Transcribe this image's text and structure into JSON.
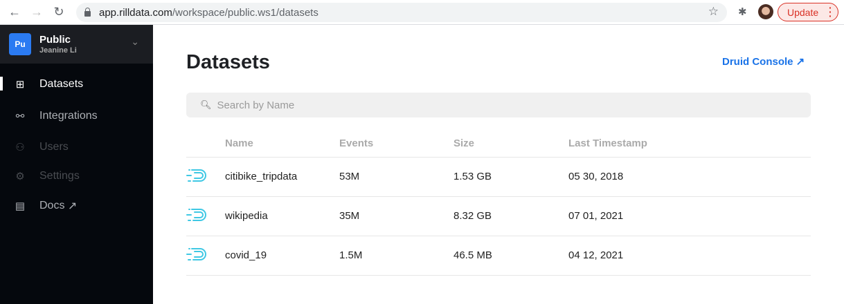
{
  "browser": {
    "url_host": "app.rilldata.com",
    "url_path": "/workspace/public.ws1/datasets",
    "update_label": "Update"
  },
  "workspace": {
    "initials": "Pu",
    "name": "Public",
    "user": "Jeanine Li"
  },
  "sidebar": {
    "items": [
      {
        "label": "Datasets",
        "icon": "datasets-icon"
      },
      {
        "label": "Integrations",
        "icon": "integrations-icon"
      },
      {
        "label": "Users",
        "icon": "users-icon"
      },
      {
        "label": "Settings",
        "icon": "gear-icon"
      },
      {
        "label": "Docs",
        "icon": "document-icon",
        "ext": "↗"
      }
    ]
  },
  "main": {
    "title": "Datasets",
    "druid_console": "Druid Console ↗",
    "search_placeholder": "Search by Name",
    "columns": [
      "Name",
      "Events",
      "Size",
      "Last Timestamp"
    ],
    "rows": [
      {
        "name": "citibike_tripdata",
        "events": "53M",
        "size": "1.53 GB",
        "last": "05 30, 2018"
      },
      {
        "name": "wikipedia",
        "events": "35M",
        "size": "8.32 GB",
        "last": "07 01, 2021"
      },
      {
        "name": "covid_19",
        "events": "1.5M",
        "size": "46.5 MB",
        "last": "04 12, 2021"
      }
    ]
  },
  "colors": {
    "accent": "#1a73e8",
    "druid_icon": "#3fc8e4",
    "sidebar_bg": "#05080d"
  }
}
